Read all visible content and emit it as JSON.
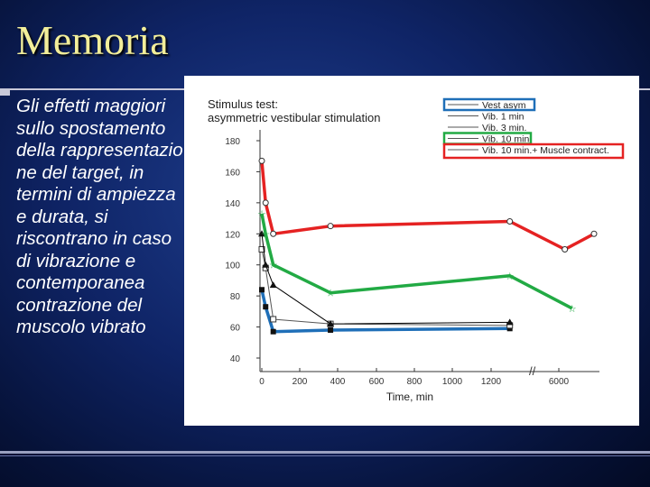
{
  "slide": {
    "title": "Memoria",
    "body": "Gli effetti maggiori sullo spostamento della rappresentazio ne del target, in termini di ampiezza e durata, si riscontrano in caso di vibrazione e contemporanea contrazione del muscolo vibrato"
  },
  "chart_data": {
    "type": "line",
    "title": "Stimulus test:",
    "subtitle": "asymmetric vestibular stimulation",
    "xlabel": "Time, min",
    "ylabel": "",
    "xticks": [
      "0",
      "200",
      "400",
      "600",
      "800",
      "1000",
      "1200",
      "6000"
    ],
    "yticks": [
      "40",
      "60",
      "80",
      "100",
      "120",
      "140",
      "160",
      "180"
    ],
    "axis_break": "//",
    "ylim": [
      40,
      180
    ],
    "legend_position": "top-right",
    "series": [
      {
        "name": "Vest asym",
        "color": "#1f6fb8",
        "marker": "filled-square",
        "points": [
          [
            0,
            84
          ],
          [
            20,
            73
          ],
          [
            60,
            57
          ],
          [
            360,
            58
          ],
          [
            1300,
            59
          ]
        ]
      },
      {
        "name": "Vib. 1 min",
        "color": "#555555",
        "marker": "open-square",
        "points": [
          [
            0,
            110
          ],
          [
            20,
            98
          ],
          [
            60,
            65
          ],
          [
            360,
            62
          ],
          [
            1300,
            61
          ]
        ]
      },
      {
        "name": "Vib. 3 min.",
        "color": "#000000",
        "marker": "filled-triangle",
        "points": [
          [
            0,
            120
          ],
          [
            20,
            100
          ],
          [
            60,
            87
          ],
          [
            360,
            62
          ],
          [
            1300,
            63
          ]
        ]
      },
      {
        "name": "Vib. 10 min.",
        "color": "#22aa44",
        "marker": "open-star",
        "points": [
          [
            0,
            133
          ],
          [
            20,
            120
          ],
          [
            60,
            100
          ],
          [
            360,
            82
          ],
          [
            1300,
            93
          ],
          [
            4500,
            72
          ]
        ]
      },
      {
        "name": "Vib. 10 min.+ Muscle contract.",
        "color": "#e52222",
        "marker": "open-circle",
        "points": [
          [
            0,
            167
          ],
          [
            20,
            140
          ],
          [
            60,
            120
          ],
          [
            360,
            125
          ],
          [
            1300,
            128
          ],
          [
            4000,
            110
          ],
          [
            6000,
            120
          ]
        ]
      }
    ]
  }
}
